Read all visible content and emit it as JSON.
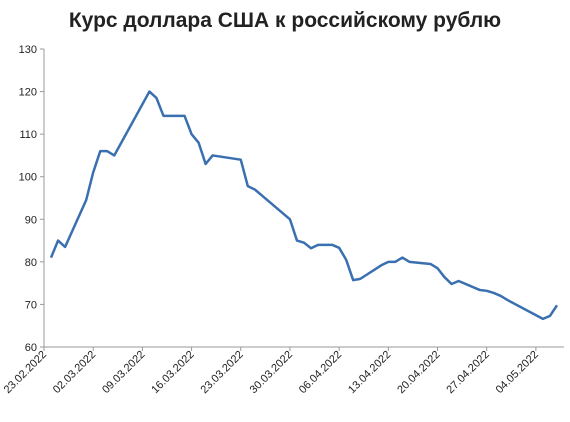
{
  "chart_data": {
    "type": "line",
    "title": "Курс доллара США к российскому рублю",
    "x": [
      "24.02.2022",
      "25.02.2022",
      "26.02.2022",
      "01.03.2022",
      "02.03.2022",
      "03.03.2022",
      "04.03.2022",
      "05.03.2022",
      "10.03.2022",
      "11.03.2022",
      "12.03.2022",
      "15.03.2022",
      "16.03.2022",
      "17.03.2022",
      "18.03.2022",
      "19.03.2022",
      "23.03.2022",
      "24.03.2022",
      "25.03.2022",
      "26.03.2022",
      "30.03.2022",
      "31.03.2022",
      "01.04.2022",
      "02.04.2022",
      "03.04.2022",
      "05.04.2022",
      "06.04.2022",
      "07.04.2022",
      "08.04.2022",
      "09.04.2022",
      "12.04.2022",
      "13.04.2022",
      "14.04.2022",
      "15.04.2022",
      "16.04.2022",
      "19.04.2022",
      "20.04.2022",
      "21.04.2022",
      "22.04.2022",
      "23.04.2022",
      "26.04.2022",
      "27.04.2022",
      "28.04.2022",
      "29.04.2022",
      "30.04.2022",
      "05.05.2022",
      "06.05.2022",
      "07.05.2022"
    ],
    "series": [
      {
        "color": "#3a6fb0",
        "values": [
          81,
          85,
          83.5,
          94.5,
          101,
          106,
          106,
          105,
          120,
          118.5,
          114.3,
          114.3,
          110,
          108,
          103,
          105,
          104,
          97.8,
          97,
          95.6,
          90,
          85,
          84.5,
          83.2,
          84,
          84,
          83.3,
          80.5,
          75.7,
          76,
          79.2,
          80,
          80,
          81,
          80,
          79.5,
          78.5,
          76.4,
          74.8,
          75.5,
          73.4,
          73.2,
          72.7,
          72,
          71,
          66.6,
          67.3,
          69.8
        ]
      }
    ],
    "xlim": [
      "23.02.2022",
      "08.05.2022"
    ],
    "xticks": [
      "23.02.2022",
      "02.03.2022",
      "09.03.2022",
      "16.03.2022",
      "23.03.2022",
      "30.03.2022",
      "06.04.2022",
      "13.04.2022",
      "20.04.2022",
      "27.04.2022",
      "04.05.2022"
    ],
    "ylim": [
      60,
      130
    ],
    "yticks": [
      60,
      70,
      80,
      90,
      100,
      110,
      120,
      130
    ],
    "grid": false
  }
}
